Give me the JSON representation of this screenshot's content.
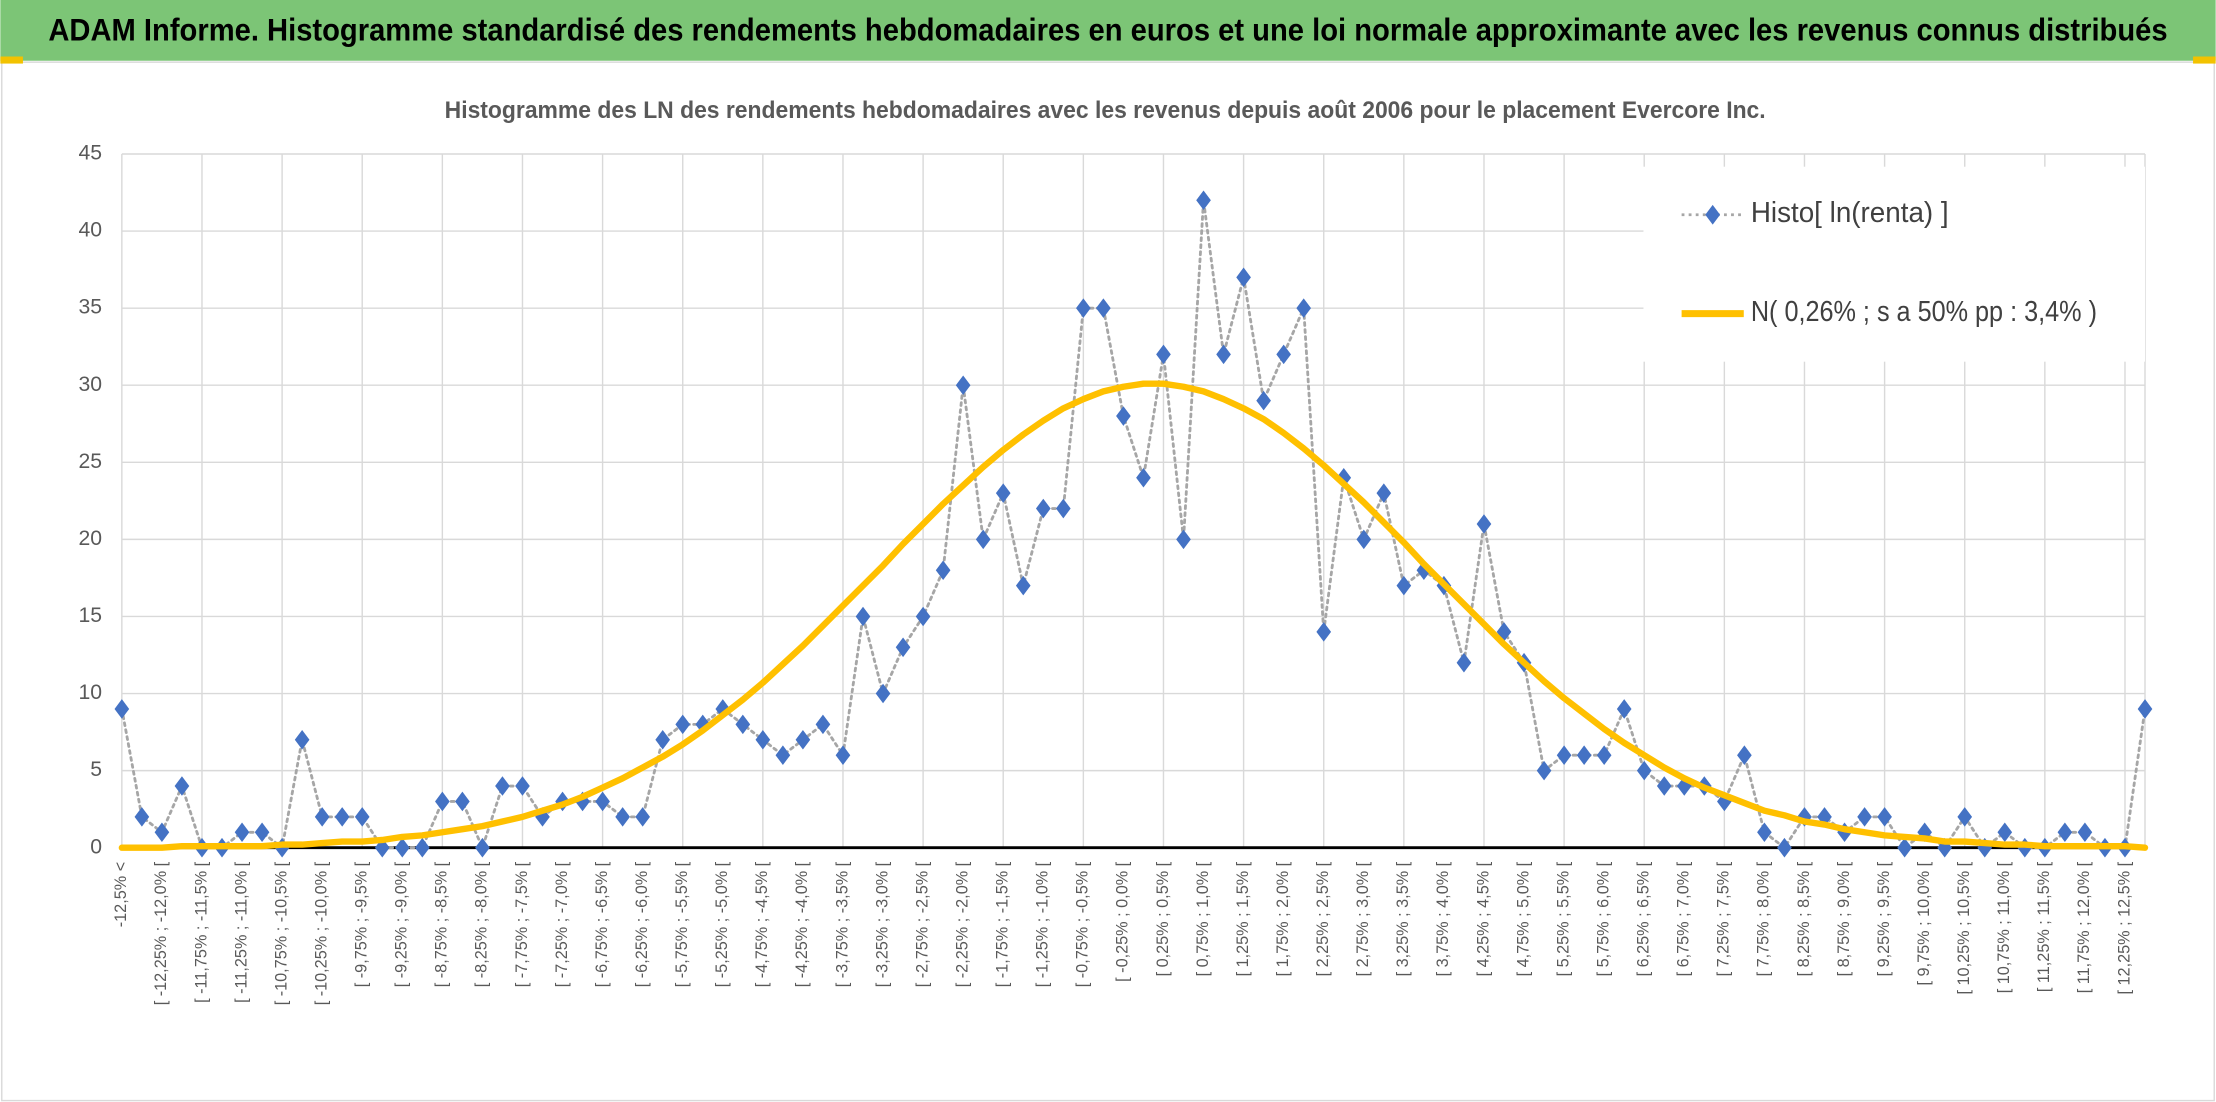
{
  "page_title": "ADAM Informe. Histogramme standardisé des rendements hebdomadaires en euros et une loi normale approximante avec les revenus connus distribués",
  "chart_data": {
    "type": "line",
    "title": "Histogramme des LN des rendements hebdomadaires avec les revenus depuis août 2006 pour le placement Evercore Inc.",
    "categories": [
      "-12,5% <",
      null,
      "[ -12,25% ; -12,0% [",
      null,
      "[ -11,75% ; -11,5% [",
      null,
      "[ -11,25% ; -11,0% [",
      null,
      "[ -10,75% ; -10,5% [",
      null,
      "[ -10,25% ; -10,0% [",
      null,
      "[ -9,75% ; -9,5% [",
      null,
      "[ -9,25% ; -9,0% [",
      null,
      "[ -8,75% ; -8,5% [",
      null,
      "[ -8,25% ; -8,0% [",
      null,
      "[ -7,75% ; -7,5% [",
      null,
      "[ -7,25% ; -7,0% [",
      null,
      "[ -6,75% ; -6,5% [",
      null,
      "[ -6,25% ; -6,0% [",
      null,
      "[ -5,75% ; -5,5% [",
      null,
      "[ -5,25% ; -5,0% [",
      null,
      "[ -4,75% ; -4,5% [",
      null,
      "[ -4,25% ; -4,0% [",
      null,
      "[ -3,75% ; -3,5% [",
      null,
      "[ -3,25% ; -3,0% [",
      null,
      "[ -2,75% ; -2,5% [",
      null,
      "[ -2,25% ; -2,0% [",
      null,
      "[ -1,75% ; -1,5% [",
      null,
      "[ -1,25% ; -1,0% [",
      null,
      "[ -0,75% ; -0,5% [",
      null,
      "[ -0,25% ; 0,0% [",
      null,
      "[ 0,25% ; 0,5% [",
      null,
      "[ 0,75% ; 1,0% [",
      null,
      "[ 1,25% ; 1,5% [",
      null,
      "[ 1,75% ; 2,0% [",
      null,
      "[ 2,25% ; 2,5% [",
      null,
      "[ 2,75% ; 3,0% [",
      null,
      "[ 3,25% ; 3,5% [",
      null,
      "[ 3,75% ; 4,0% [",
      null,
      "[ 4,25% ; 4,5% [",
      null,
      "[ 4,75% ; 5,0% [",
      null,
      "[ 5,25% ; 5,5% [",
      null,
      "[ 5,75% ; 6,0% [",
      null,
      "[ 6,25% ; 6,5% [",
      null,
      "[ 6,75% ; 7,0% [",
      null,
      "[ 7,25% ; 7,5% [",
      null,
      "[ 7,75% ; 8,0% [",
      null,
      "[ 8,25% ; 8,5% [",
      null,
      "[ 8,75% ; 9,0% [",
      null,
      "[ 9,25% ; 9,5% [",
      null,
      "[ 9,75% ; 10,0% [",
      null,
      "[ 10,25% ; 10,5% [",
      null,
      "[ 10,75% ; 11,0% [",
      null,
      "[ 11,25% ; 11,5% [",
      null,
      "[ 11,75% ; 12,0% [",
      null,
      "[ 12,25% ; 12,5% [",
      null
    ],
    "series": [
      {
        "name": "Histo[ ln(renta) ]",
        "color": "#4472c4",
        "line_color": "#a6a6a6",
        "marker": "diamond",
        "values": [
          9,
          2,
          1,
          4,
          0,
          0,
          1,
          1,
          0,
          7,
          2,
          2,
          2,
          0,
          0,
          0,
          3,
          3,
          0,
          4,
          4,
          2,
          3,
          3,
          3,
          2,
          2,
          7,
          8,
          8,
          9,
          8,
          7,
          6,
          7,
          8,
          6,
          15,
          10,
          13,
          15,
          18,
          30,
          20,
          23,
          17,
          22,
          22,
          35,
          35,
          28,
          24,
          32,
          20,
          42,
          32,
          37,
          29,
          32,
          35,
          14,
          24,
          20,
          23,
          17,
          18,
          17,
          12,
          21,
          14,
          12,
          5,
          6,
          6,
          6,
          9,
          5,
          4,
          4,
          4,
          3,
          6,
          1,
          0,
          2,
          2,
          1,
          2,
          2,
          0,
          1,
          0,
          2,
          0,
          1,
          0,
          0,
          1,
          1,
          0,
          0,
          9
        ]
      },
      {
        "name": "N( 0,26% ; s a 50% pp : 3,4% )",
        "color": "#ffc000",
        "values": [
          0,
          0,
          0,
          0.1,
          0.1,
          0.1,
          0.1,
          0.1,
          0.2,
          0.2,
          0.3,
          0.4,
          0.4,
          0.5,
          0.7,
          0.8,
          1,
          1.2,
          1.4,
          1.7,
          2,
          2.4,
          2.8,
          3.3,
          3.9,
          4.5,
          5.2,
          5.9,
          6.7,
          7.6,
          8.6,
          9.6,
          10.7,
          11.9,
          13.1,
          14.4,
          15.7,
          17,
          18.3,
          19.7,
          21,
          22.3,
          23.5,
          24.7,
          25.8,
          26.8,
          27.7,
          28.5,
          29.1,
          29.6,
          29.9,
          30.1,
          30.1,
          29.9,
          29.6,
          29.1,
          28.5,
          27.8,
          26.9,
          25.9,
          24.8,
          23.6,
          22.4,
          21.1,
          19.8,
          18.4,
          17.1,
          15.8,
          14.5,
          13.2,
          12,
          10.8,
          9.7,
          8.7,
          7.7,
          6.8,
          6,
          5.2,
          4.5,
          3.9,
          3.4,
          2.9,
          2.4,
          2.1,
          1.7,
          1.5,
          1.2,
          1,
          0.8,
          0.7,
          0.6,
          0.4,
          0.4,
          0.3,
          0.2,
          0.2,
          0.1,
          0.1,
          0.1,
          0.1,
          0.1,
          0
        ]
      }
    ],
    "ylim": [
      0,
      45
    ],
    "yticks": [
      0,
      5,
      10,
      15,
      20,
      25,
      30,
      35,
      40,
      45
    ],
    "grid": true,
    "legend": "upper right"
  }
}
